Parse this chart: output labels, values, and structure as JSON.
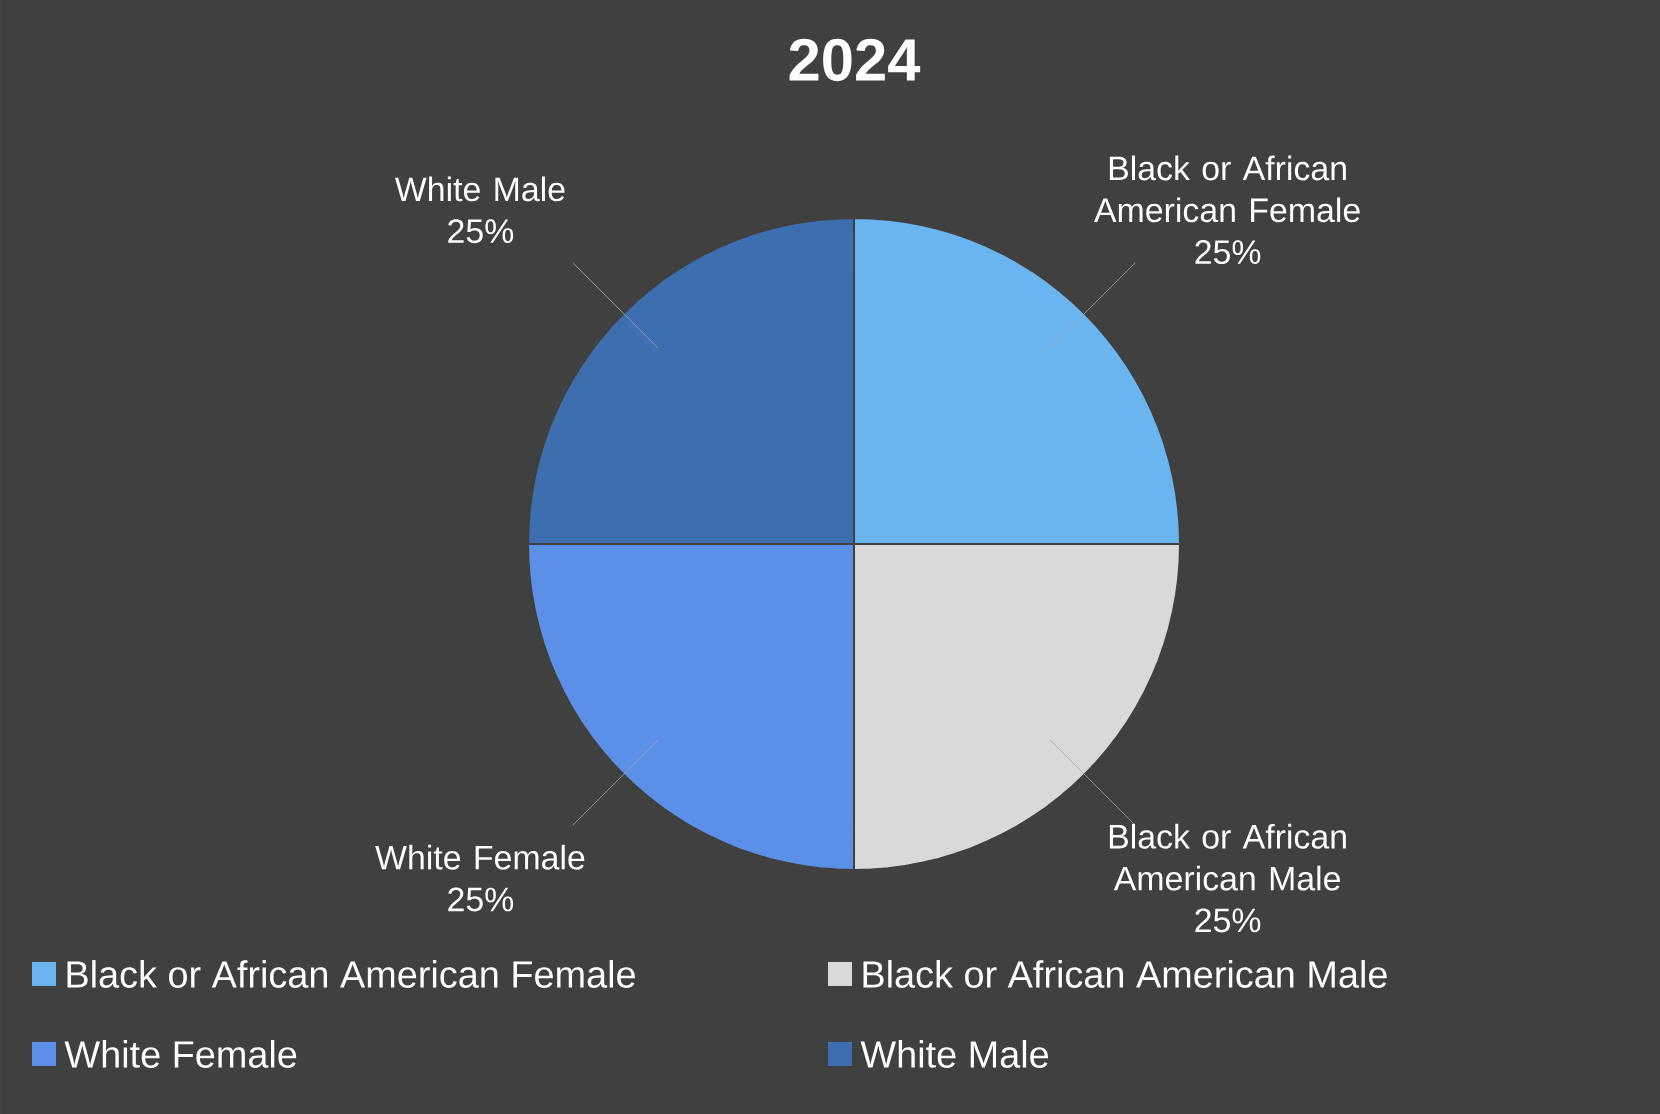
{
  "chart_data": {
    "type": "pie",
    "title": "2024",
    "categories": [
      "Black or African American Female",
      "Black or African American Male",
      "White Female",
      "White Male"
    ],
    "values": [
      25,
      25,
      25,
      25
    ],
    "value_labels": [
      "25%",
      "25%",
      "25%",
      "25%"
    ],
    "colors": [
      "#6ab4f0",
      "#d9d9d9",
      "#5b8fe8",
      "#3d6fb0"
    ],
    "legend": "bottom"
  }
}
